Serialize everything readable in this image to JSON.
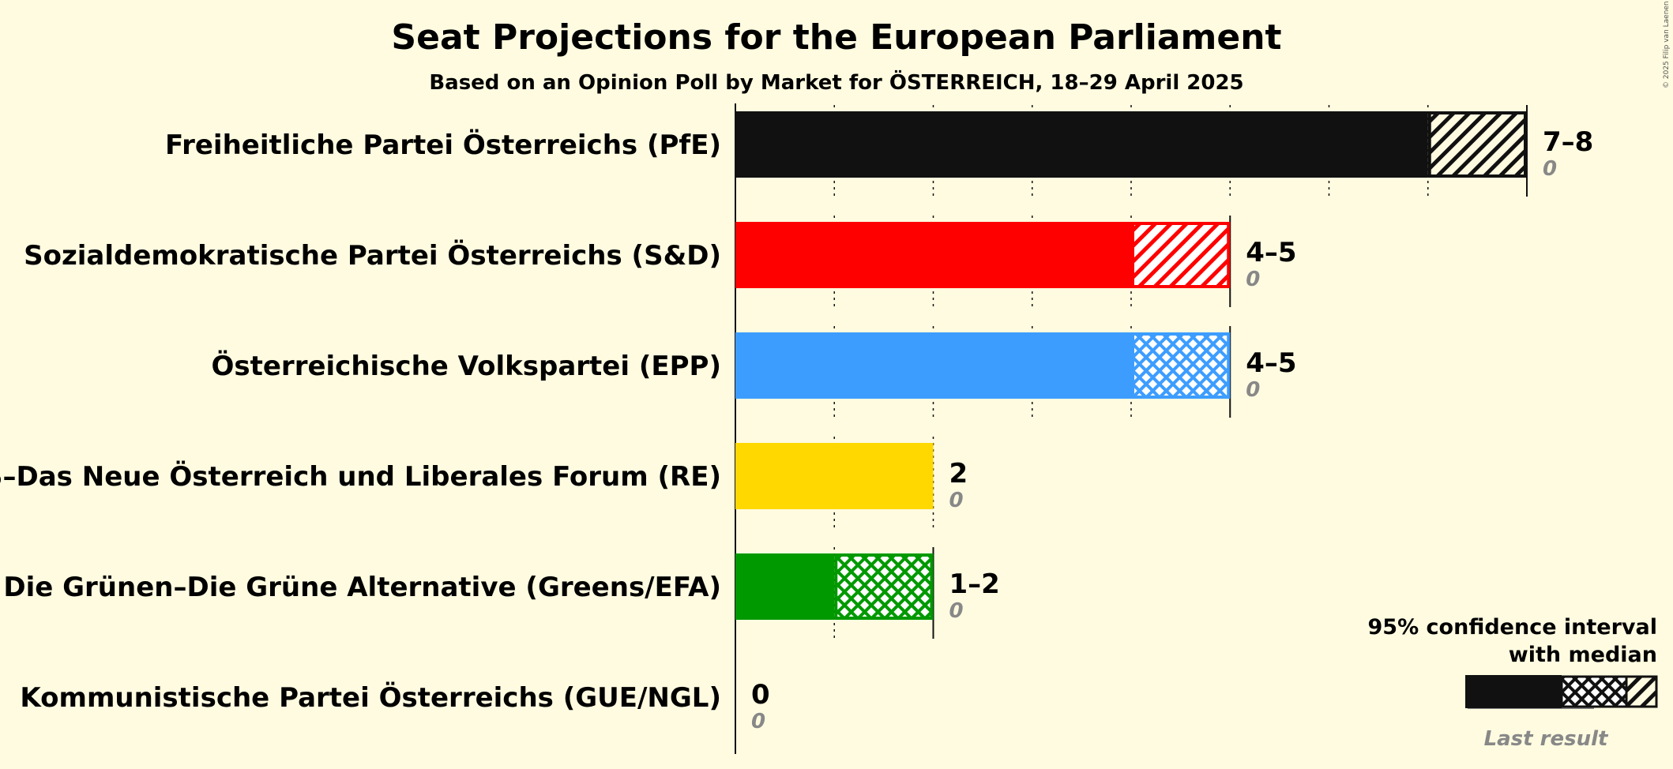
{
  "title": "Seat Projections for the European Parliament",
  "subtitle": "Based on an Opinion Poll by Market for ÖSTERREICH, 18–29 April 2025",
  "copyright": "© 2025 Filip van Laenen",
  "legend": {
    "line1": "95% confidence interval",
    "line2": "with median",
    "last_result": "Last result"
  },
  "chart_data": {
    "type": "bar",
    "orientation": "horizontal",
    "title": "Seat Projections for the European Parliament",
    "subtitle": "Based on an Opinion Poll by Market for ÖSTERREICH, 18–29 April 2025",
    "xlim": [
      0,
      8
    ],
    "grid": "dotted vertical lines at each seat",
    "legend_position": "bottom-right",
    "series": [
      {
        "name": "Freiheitliche Partei Österreichs (PfE)",
        "low": 7,
        "median": 7,
        "high": 8,
        "range_label": "7–8",
        "last_result": 0,
        "last_label": "0",
        "color": "#111111",
        "hatch": "diagonal"
      },
      {
        "name": "Sozialdemokratische Partei Österreichs (S&D)",
        "low": 4,
        "median": 4,
        "high": 5,
        "range_label": "4–5",
        "last_result": 0,
        "last_label": "0",
        "color": "#ff0000",
        "hatch": "diagonal"
      },
      {
        "name": "Österreichische Volkspartei (EPP)",
        "low": 4,
        "median": 4,
        "high": 5,
        "range_label": "4–5",
        "last_result": 0,
        "last_label": "0",
        "color": "#3d9dff",
        "hatch": "cross"
      },
      {
        "name": "NEOS–Das Neue Österreich und Liberales Forum (RE)",
        "low": 2,
        "median": 2,
        "high": 2,
        "range_label": "2",
        "last_result": 0,
        "last_label": "0",
        "color": "#ffd800",
        "hatch": "none"
      },
      {
        "name": "Die Grünen–Die Grüne Alternative (Greens/EFA)",
        "low": 1,
        "median": 1,
        "high": 2,
        "range_label": "1–2",
        "last_result": 0,
        "last_label": "0",
        "color": "#009900",
        "hatch": "cross"
      },
      {
        "name": "Kommunistische Partei Österreichs (GUE/NGL)",
        "low": 0,
        "median": 0,
        "high": 0,
        "range_label": "0",
        "last_result": 0,
        "last_label": "0",
        "color": "#cc0000",
        "hatch": "none"
      }
    ]
  }
}
